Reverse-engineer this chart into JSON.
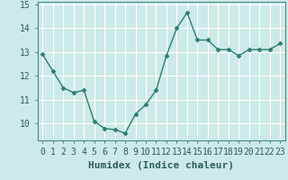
{
  "x": [
    0,
    1,
    2,
    3,
    4,
    5,
    6,
    7,
    8,
    9,
    10,
    11,
    12,
    13,
    14,
    15,
    16,
    17,
    18,
    19,
    20,
    21,
    22,
    23
  ],
  "y": [
    12.9,
    12.2,
    11.5,
    11.3,
    11.4,
    10.1,
    9.8,
    9.75,
    9.6,
    10.4,
    10.8,
    11.4,
    12.85,
    14.0,
    14.65,
    13.5,
    13.5,
    13.1,
    13.1,
    12.85,
    13.1,
    13.1,
    13.1,
    13.35
  ],
  "line_color": "#2e7d6e",
  "marker": "D",
  "marker_size": 2.5,
  "bg_color": "#cceae8",
  "grid_color": "#ffffff",
  "xlabel": "Humidex (Indice chaleur)",
  "ylim": [
    9.3,
    15.1
  ],
  "yticks": [
    10,
    11,
    12,
    13,
    14,
    15
  ],
  "xticks": [
    0,
    1,
    2,
    3,
    4,
    5,
    6,
    7,
    8,
    9,
    10,
    11,
    12,
    13,
    14,
    15,
    16,
    17,
    18,
    19,
    20,
    21,
    22,
    23
  ],
  "xtick_labels": [
    "0",
    "1",
    "2",
    "3",
    "4",
    "5",
    "6",
    "7",
    "8",
    "9",
    "10",
    "11",
    "12",
    "13",
    "14",
    "15",
    "16",
    "17",
    "18",
    "19",
    "20",
    "21",
    "22",
    "23"
  ],
  "font_size": 7,
  "xlabel_fontsize": 8,
  "line_width": 1.0,
  "spine_color": "#4a8a80",
  "tick_color": "#4a8a80",
  "label_color": "#2e5d58"
}
